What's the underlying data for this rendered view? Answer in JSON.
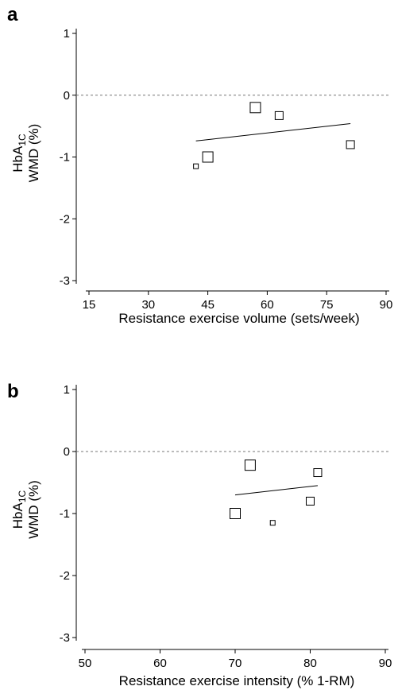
{
  "chart_data": [
    {
      "type": "scatter",
      "panel_label": "a",
      "xlabel": "Resistance exercise volume (sets/week)",
      "ylabel": {
        "line1_base": "HbA",
        "line1_sub": "1C",
        "line2": "WMD (%)"
      },
      "xlim": [
        15,
        90
      ],
      "ylim": [
        -3,
        1
      ],
      "xticks": [
        15,
        30,
        45,
        60,
        75,
        90
      ],
      "yticks": [
        1,
        0,
        -1,
        -2,
        -3
      ],
      "reference_line_y": 0,
      "points": [
        {
          "x": 42,
          "y": -1.15,
          "weight": "small"
        },
        {
          "x": 45,
          "y": -1.0,
          "weight": "large"
        },
        {
          "x": 57,
          "y": -0.2,
          "weight": "large"
        },
        {
          "x": 63,
          "y": -0.33,
          "weight": "medium"
        },
        {
          "x": 81,
          "y": -0.8,
          "weight": "medium"
        }
      ],
      "fit_line": {
        "x": [
          42,
          81
        ],
        "y": [
          -0.74,
          -0.46
        ]
      }
    },
    {
      "type": "scatter",
      "panel_label": "b",
      "xlabel": "Resistance exercise intensity (% 1-RM)",
      "ylabel": {
        "line1_base": "HbA",
        "line1_sub": "1C",
        "line2": "WMD (%)"
      },
      "xlim": [
        50,
        90
      ],
      "ylim": [
        -3,
        1
      ],
      "xticks": [
        50,
        60,
        70,
        80,
        90
      ],
      "yticks": [
        1,
        0,
        -1,
        -2,
        -3
      ],
      "reference_line_y": 0,
      "points": [
        {
          "x": 70,
          "y": -1.0,
          "weight": "large"
        },
        {
          "x": 72,
          "y": -0.22,
          "weight": "large"
        },
        {
          "x": 75,
          "y": -1.15,
          "weight": "small"
        },
        {
          "x": 80,
          "y": -0.8,
          "weight": "medium"
        },
        {
          "x": 81,
          "y": -0.34,
          "weight": "medium"
        }
      ],
      "fit_line": {
        "x": [
          70,
          81
        ],
        "y": [
          -0.7,
          -0.55
        ]
      }
    }
  ]
}
